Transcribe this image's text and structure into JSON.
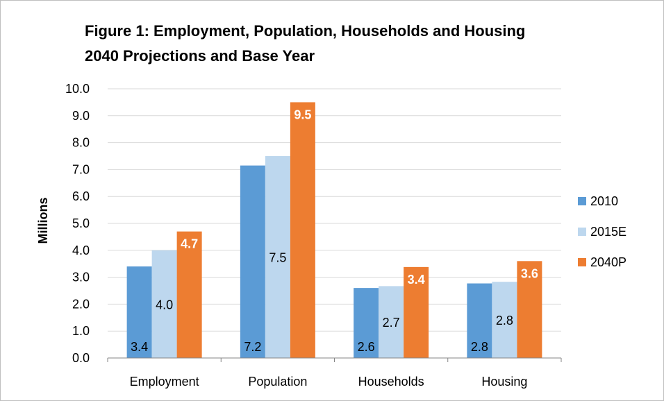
{
  "chart_data": {
    "type": "bar",
    "title_line1": "Figure 1: Employment, Population, Households and Housing",
    "title_line2": "2040 Projections and Base Year",
    "xlabel": "",
    "ylabel": "Millions",
    "ylim": [
      0,
      10
    ],
    "ytick_step": 1,
    "yticks": [
      "0.0",
      "1.0",
      "2.0",
      "3.0",
      "4.0",
      "5.0",
      "6.0",
      "7.0",
      "8.0",
      "9.0",
      "10.0"
    ],
    "grid": true,
    "legend_position": "right",
    "categories": [
      "Employment",
      "Population",
      "Households",
      "Housing"
    ],
    "series": [
      {
        "name": "2010",
        "color": "#5b9bd5",
        "values": [
          3.4,
          7.15,
          2.6,
          2.77
        ],
        "data_labels": [
          "3.4",
          "7.2",
          "2.6",
          "2.8"
        ],
        "label_position": "inside-base",
        "label_color": "#000000",
        "label_bold": false
      },
      {
        "name": "2015E",
        "color": "#bdd7ee",
        "values": [
          4.0,
          7.5,
          2.67,
          2.83
        ],
        "data_labels": [
          "4.0",
          "7.5",
          "2.7",
          "2.8"
        ],
        "label_position": "inside-center",
        "label_color": "#000000",
        "label_bold": false
      },
      {
        "name": "2040P",
        "color": "#ed7d31",
        "values": [
          4.7,
          9.5,
          3.38,
          3.6
        ],
        "data_labels": [
          "4.7",
          "9.5",
          "3.4",
          "3.6"
        ],
        "label_position": "inside-end",
        "label_color": "#ffffff",
        "label_bold": true
      }
    ]
  }
}
